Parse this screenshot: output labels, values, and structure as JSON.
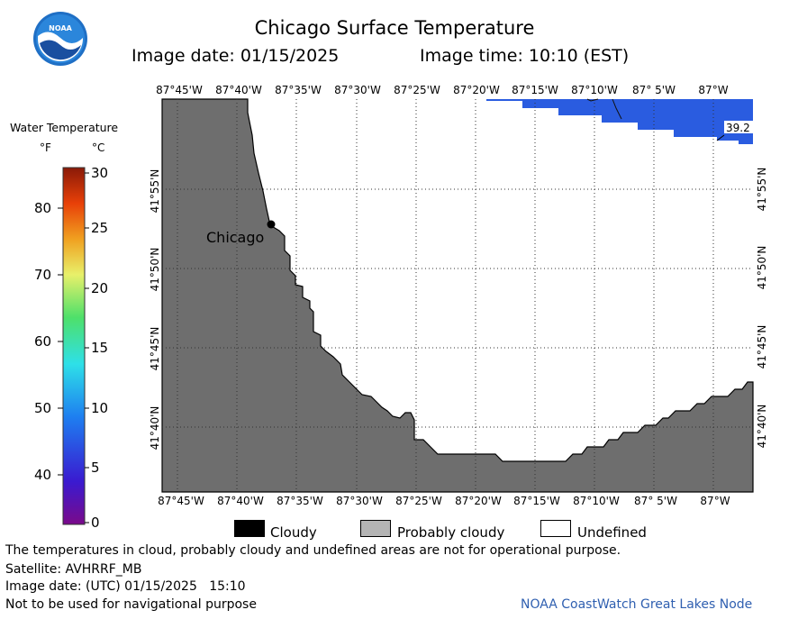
{
  "header": {
    "title": "Chicago Surface Temperature",
    "image_date": "Image date: 01/15/2025",
    "image_time": "Image time: 10:10 (EST)"
  },
  "logo": {
    "text": "NOAA",
    "color": "#1a5fb4"
  },
  "scale": {
    "title": "Water Temperature",
    "unit_f": "°F",
    "unit_c": "°C",
    "f_ticks": [
      "80",
      "70",
      "60",
      "50",
      "40"
    ],
    "c_ticks": [
      "30",
      "25",
      "20",
      "15",
      "10",
      "5",
      "0"
    ]
  },
  "map": {
    "lon_labels_top": [
      "87°45'W",
      "87°40'W",
      "87°35'W",
      "87°30'W",
      "87°25'W",
      "87°20'W",
      "87°15'W",
      "87°10'W",
      "87° 5'W",
      "87°W"
    ],
    "lon_labels_bottom": [
      "87°45'W",
      "87°40'W",
      "87°35'W",
      "87°30'W",
      "87°25'W",
      "87°20'W",
      "87°15'W",
      "87°10'W",
      "87° 5'W",
      "87°W"
    ],
    "lat_labels": [
      "41°55'N",
      "41°50'N",
      "41°45'N",
      "41°40'N"
    ],
    "city_label": "Chicago",
    "temp_label": "39.2",
    "colors": {
      "land": "#6e6e6e",
      "water_temp": "#2a5ce0",
      "undefined": "#ffffff",
      "grid": "#555555"
    }
  },
  "categories": [
    {
      "label": "Cloudy",
      "color": "#000000"
    },
    {
      "label": "Probably cloudy",
      "color": "#b4b4b4"
    },
    {
      "label": "Undefined",
      "color": "#ffffff"
    }
  ],
  "footer": {
    "disclaimer": "The temperatures in cloud, probably cloudy and undefined areas are not for operational purpose.",
    "satellite": "Satellite: AVHRRF_MB",
    "utc_date": "Image date: (UTC) 01/15/2025   15:10",
    "nav_warning": "Not to be used for navigational purpose",
    "credit": "NOAA CoastWatch Great Lakes Node"
  }
}
